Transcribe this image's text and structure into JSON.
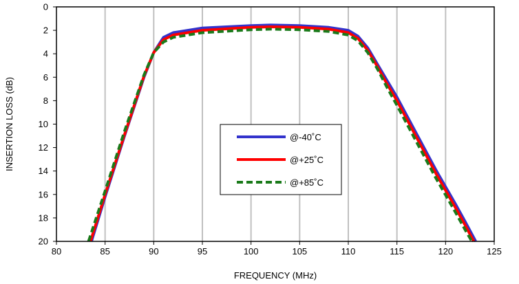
{
  "chart_data": {
    "type": "line",
    "xlabel": "FREQUENCY (MHz)",
    "ylabel": "INSERTION LOSS (dB)",
    "xlim": [
      80,
      125
    ],
    "ylim": [
      0,
      20
    ],
    "y_inverted": true,
    "grid": "vertical",
    "legend_position": "center",
    "x_ticks": [
      "80",
      "85",
      "90",
      "95",
      "100",
      "105",
      "110",
      "115",
      "120",
      "125"
    ],
    "y_ticks": [
      "0",
      "2",
      "4",
      "6",
      "8",
      "10",
      "12",
      "14",
      "16",
      "18",
      "20"
    ],
    "series": [
      {
        "name": "@-40˚C",
        "color": "#3333cc",
        "dash": "solid",
        "x": [
          83.6,
          85,
          87,
          89,
          90,
          91,
          92,
          95,
          100,
          102,
          105,
          108,
          110,
          111,
          112,
          113,
          114,
          115,
          117,
          119,
          121,
          122,
          123.1
        ],
        "y": [
          20,
          16.2,
          11,
          6,
          3.9,
          2.6,
          2.2,
          1.8,
          1.6,
          1.55,
          1.6,
          1.75,
          2.0,
          2.5,
          3.5,
          4.9,
          6.3,
          7.7,
          10.8,
          13.9,
          16.8,
          18.3,
          20
        ]
      },
      {
        "name": "@+25˚C",
        "color": "#ff0000",
        "dash": "solid",
        "x": [
          83.5,
          85,
          87,
          89,
          90,
          91,
          92,
          95,
          100,
          102,
          105,
          108,
          110,
          111,
          112,
          113,
          114,
          115,
          117,
          119,
          121,
          122,
          122.9
        ],
        "y": [
          20,
          16.0,
          10.9,
          5.9,
          3.9,
          2.8,
          2.4,
          2.0,
          1.75,
          1.7,
          1.75,
          1.9,
          2.2,
          2.7,
          3.7,
          5.1,
          6.6,
          8.0,
          11.1,
          14.2,
          17.1,
          18.6,
          20
        ]
      },
      {
        "name": "@+85˚C",
        "color": "#1a7a1a",
        "dash": "dashed",
        "x": [
          83.3,
          85,
          87,
          89,
          90,
          91,
          92,
          95,
          100,
          102,
          105,
          108,
          110,
          111,
          112,
          113,
          114,
          115,
          117,
          119,
          121,
          122,
          122.7
        ],
        "y": [
          20,
          15.7,
          10.6,
          5.8,
          3.9,
          3.0,
          2.6,
          2.2,
          1.95,
          1.9,
          1.95,
          2.1,
          2.4,
          2.9,
          3.9,
          5.3,
          6.9,
          8.4,
          11.5,
          14.6,
          17.5,
          19.0,
          20
        ]
      }
    ]
  }
}
